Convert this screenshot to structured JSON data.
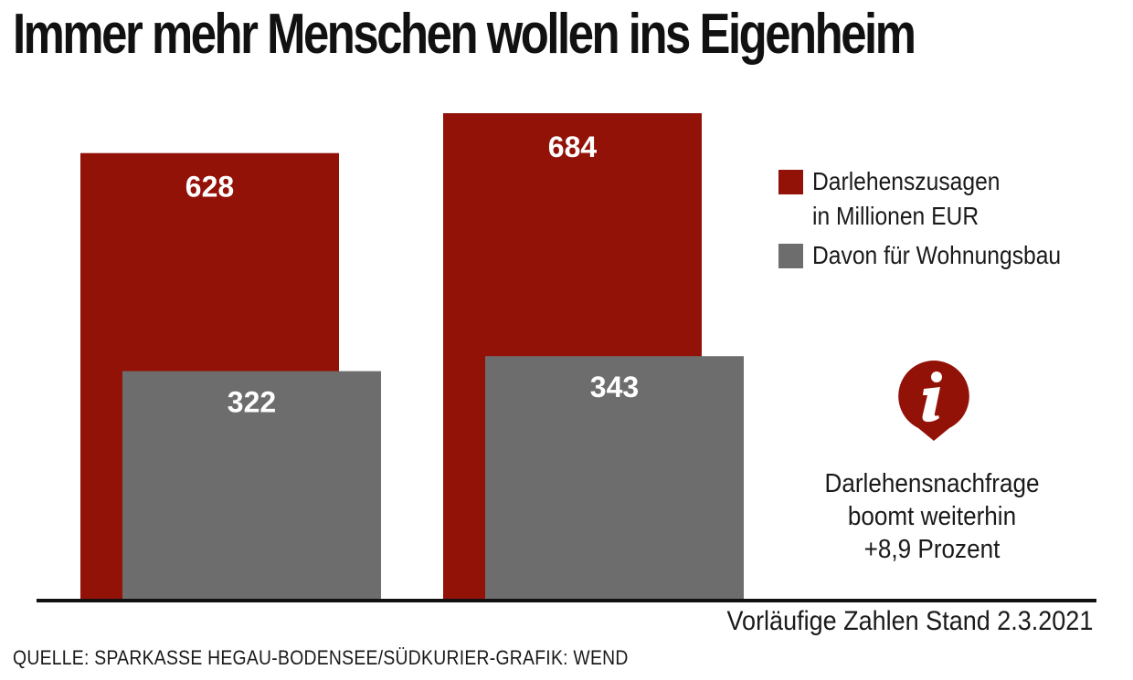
{
  "title": "Immer mehr Menschen wollen ins Eigenheim",
  "chart_data": {
    "type": "bar",
    "categories": [
      "",
      ""
    ],
    "series": [
      {
        "name": "Darlehenszusagen in Millionen EUR",
        "values": [
          628,
          684
        ],
        "color": "#931208"
      },
      {
        "name": "Davon für Wohnungsbau",
        "values": [
          322,
          343
        ],
        "color": "#6d6d6d"
      }
    ],
    "data_labels": [
      "628",
      "684",
      "322",
      "343"
    ],
    "ylim": [
      0,
      684
    ],
    "legend_position": "right"
  },
  "legend": {
    "item1_line1": "Darlehenszusagen",
    "item1_line2": "in Millionen EUR",
    "item2": "Davon für Wohnungsbau"
  },
  "info": {
    "icon": "info-icon",
    "line1": "Darlehensnachfrage",
    "line2": "boomt weiterhin",
    "line3": "+8,9 Prozent"
  },
  "footnote": "Vorläufige Zahlen Stand 2.3.2021",
  "source": "QUELLE: SPARKASSE HEGAU-BODENSEE/SÜDKURIER-GRAFIK: WEND",
  "colors": {
    "accent": "#931208",
    "secondary": "#6d6d6d",
    "text": "#1a1a1a"
  }
}
